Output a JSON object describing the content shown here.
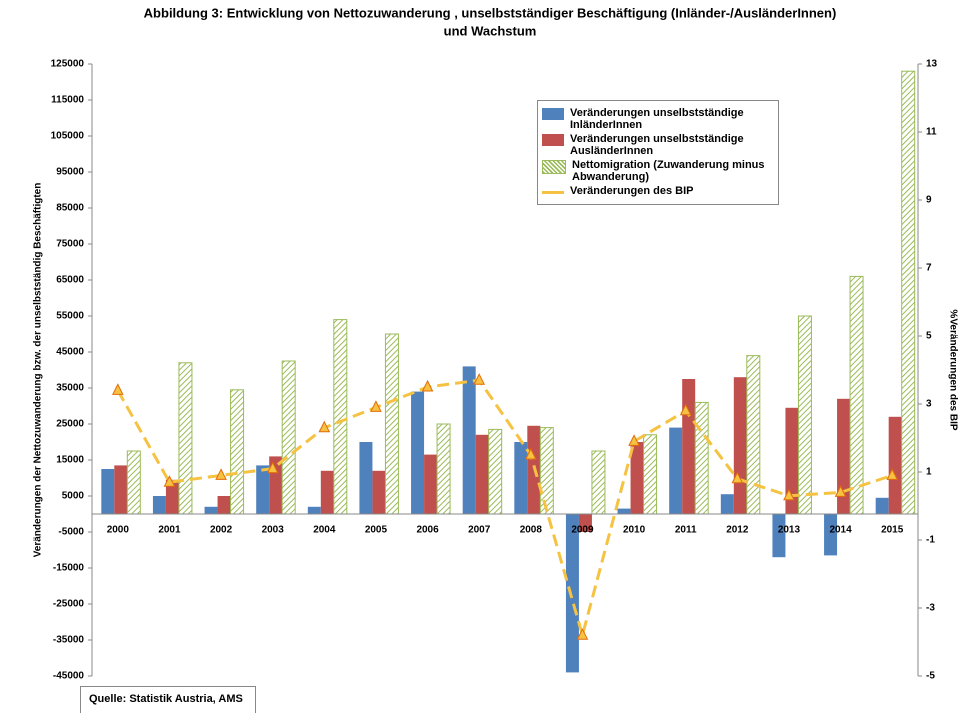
{
  "chart_data": {
    "type": "bar-line",
    "title": [
      "Abbildung 3: Entwicklung von Nettozuwanderung , unselbstständiger Beschäftigung (Inländer-/AusländerInnen)",
      "und Wachstum"
    ],
    "y_label": "Veränderungen der Nettozuwanderung bzw. der unselbstständig Beschäftigten",
    "y2_label": "%Veränderungen des BIP",
    "source": "Quelle: Statistik Austria, AMS",
    "categories": [
      "2000",
      "2001",
      "2002",
      "2003",
      "2004",
      "2005",
      "2006",
      "2007",
      "2008",
      "2009",
      "2010",
      "2011",
      "2012",
      "2013",
      "2014",
      "2015"
    ],
    "ylim": [
      -45000,
      125000
    ],
    "yticks": [
      -45000,
      -35000,
      -25000,
      -15000,
      -5000,
      5000,
      15000,
      25000,
      35000,
      45000,
      55000,
      65000,
      75000,
      85000,
      95000,
      105000,
      115000,
      125000
    ],
    "y2lim": [
      -5,
      13
    ],
    "y2ticks": [
      -5,
      -3,
      -1,
      1,
      3,
      5,
      7,
      9,
      11,
      13
    ],
    "series": [
      {
        "name": "Veränderungen unselbstständige InländerInnen",
        "kind": "bar",
        "color": "#4f81bd",
        "values": [
          12500,
          5000,
          2000,
          13500,
          2000,
          20000,
          34000,
          41000,
          20000,
          -44000,
          1500,
          24000,
          5500,
          -12000,
          -11500,
          4500
        ]
      },
      {
        "name": "Veränderungen unselbstständige AusländerInnen",
        "kind": "bar",
        "color": "#c0504d",
        "values": [
          13500,
          9500,
          5000,
          16000,
          12000,
          12000,
          16500,
          22000,
          24500,
          -5000,
          20000,
          37500,
          38000,
          29500,
          32000,
          27000
        ]
      },
      {
        "name": "Nettomigration (Zuwanderung minus Abwanderung)",
        "kind": "hatched-bar",
        "color": "#9bbb59",
        "values": [
          17500,
          42000,
          34500,
          42500,
          54000,
          50000,
          25000,
          23500,
          24000,
          17500,
          22000,
          31000,
          44000,
          55000,
          66000,
          123000
        ]
      },
      {
        "name": "Veränderungen des BIP",
        "kind": "line",
        "color": "#f5c242",
        "axis": "y2",
        "values": [
          3.4,
          0.7,
          0.9,
          1.1,
          2.3,
          2.9,
          3.5,
          3.7,
          1.5,
          -3.8,
          1.9,
          2.8,
          0.8,
          0.3,
          0.4,
          0.9
        ]
      }
    ]
  }
}
